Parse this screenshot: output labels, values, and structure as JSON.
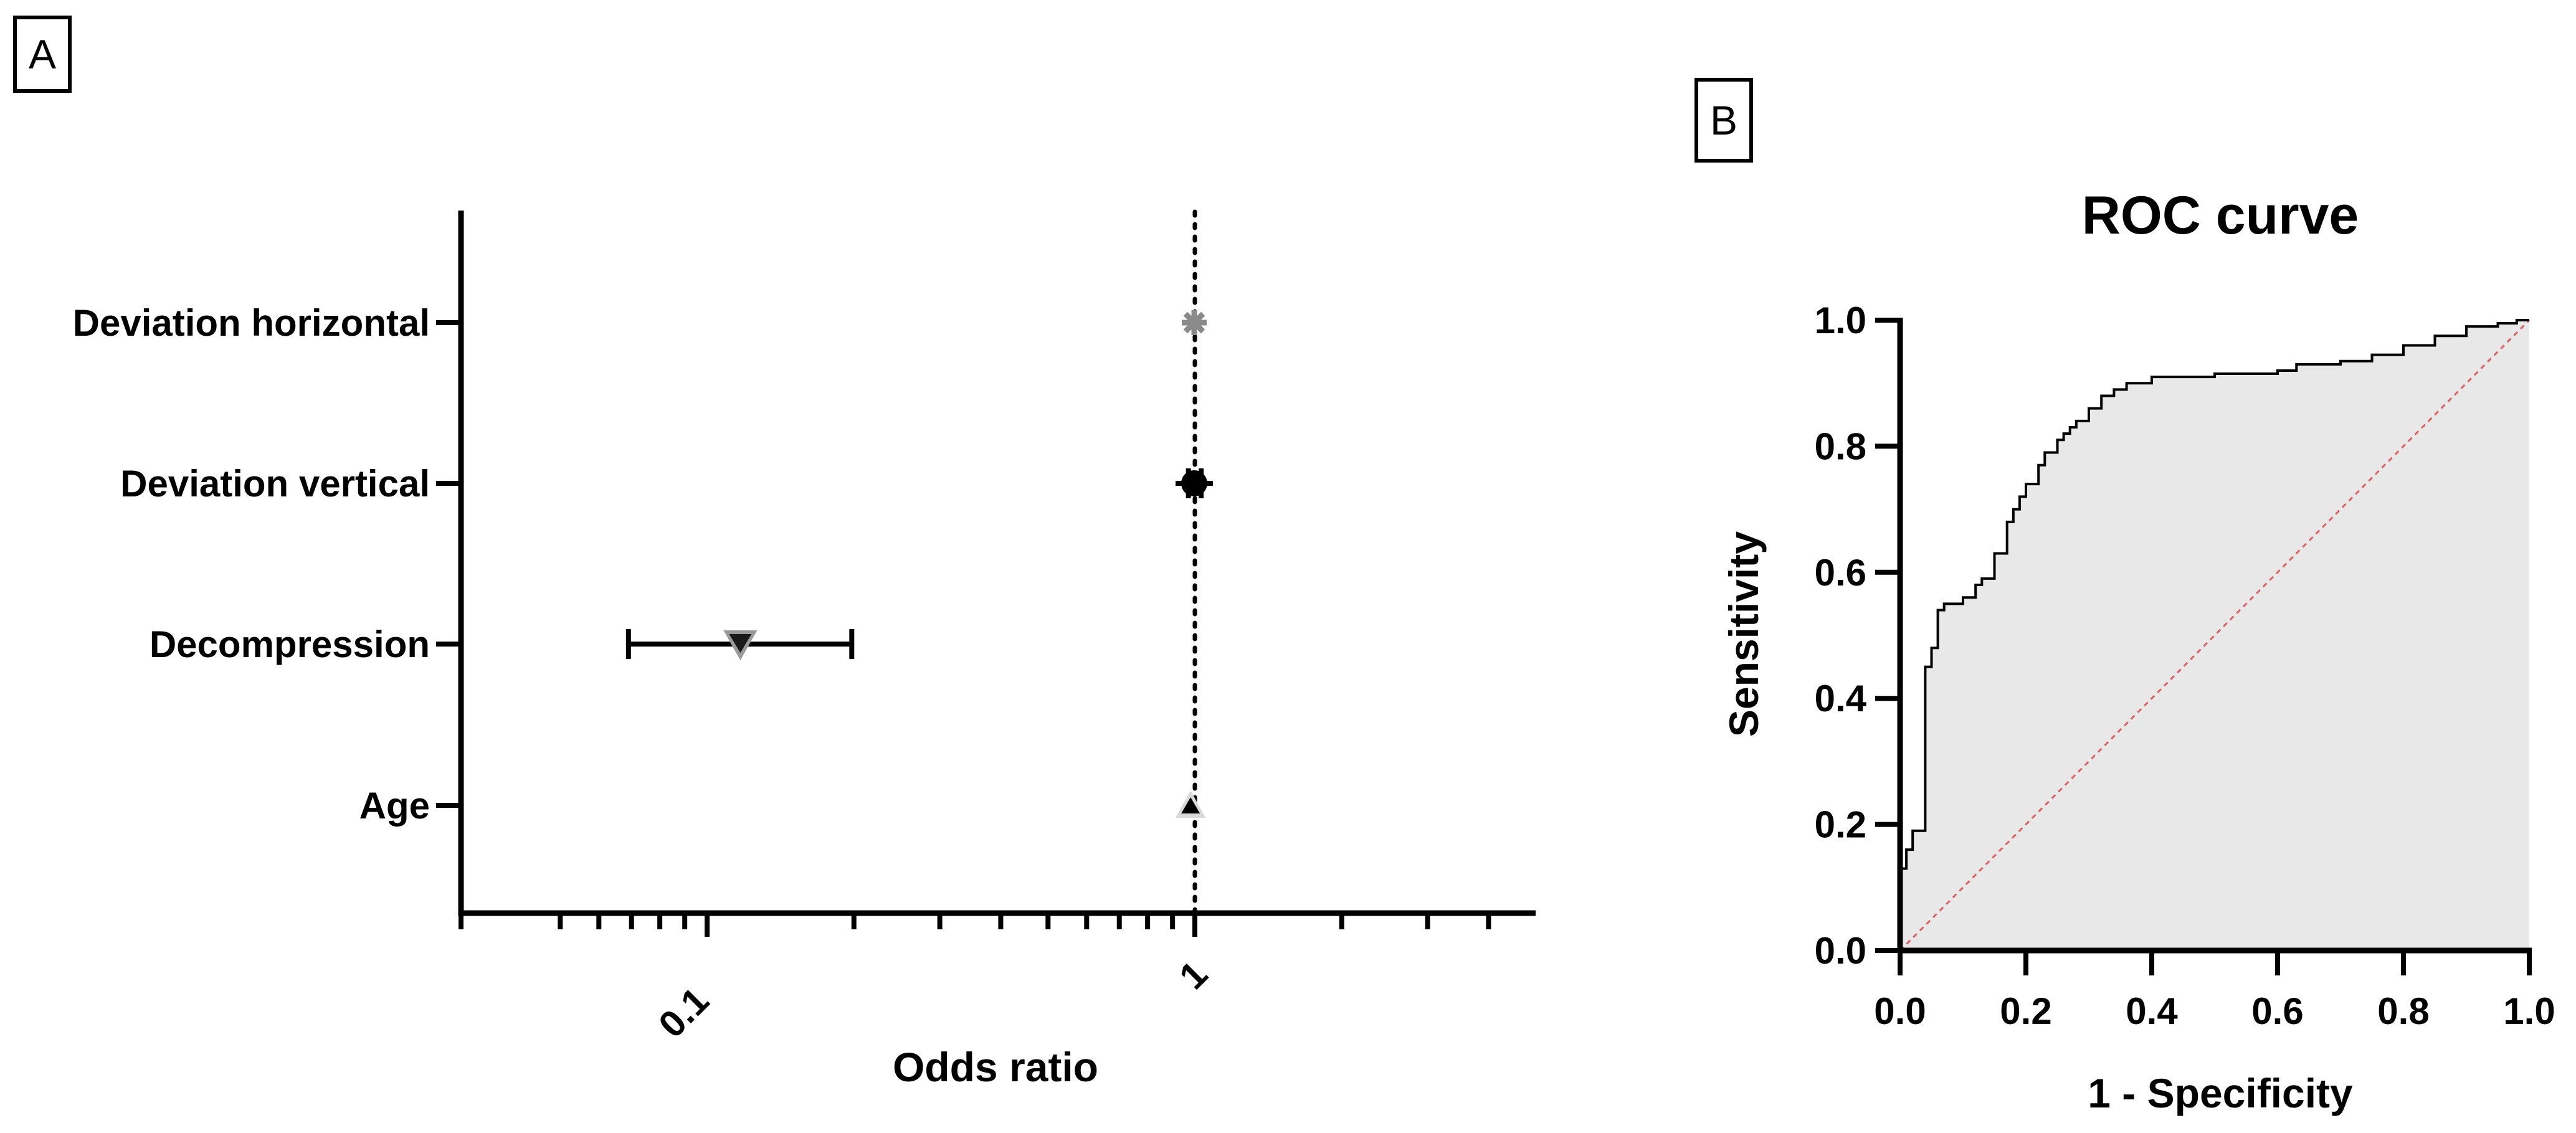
{
  "panels": {
    "a_label": "A",
    "b_label": "B"
  },
  "chart_data": [
    {
      "type": "scatter",
      "subtype": "forest-plot",
      "panel": "A",
      "title": "",
      "xlabel": "Odds ratio",
      "ylabel": "",
      "x_scale": "log",
      "xlim": [
        0.04,
        5
      ],
      "x_ticks": [
        0.1,
        1
      ],
      "x_tick_labels": [
        "0.1",
        "1"
      ],
      "reference_line": 1,
      "categories": [
        "Deviation horizontal",
        "Deviation vertical",
        "Decompression",
        "Age"
      ],
      "points": [
        {
          "category": "Deviation horizontal",
          "or": 0.997,
          "ci_low": 0.99,
          "ci_high": 1.005,
          "marker": "star",
          "color": "#8a8a8a"
        },
        {
          "category": "Deviation vertical",
          "or": 0.997,
          "ci_low": 0.97,
          "ci_high": 1.03,
          "marker": "circle",
          "color": "#000000"
        },
        {
          "category": "Decompression",
          "or": 0.117,
          "ci_low": 0.069,
          "ci_high": 0.198,
          "marker": "triangle-down",
          "color": "#1a1a1a"
        },
        {
          "category": "Age",
          "or": 0.98,
          "ci_low": 0.97,
          "ci_high": 0.99,
          "marker": "triangle-up",
          "color": "#000000"
        }
      ]
    },
    {
      "type": "line",
      "subtype": "roc-curve",
      "panel": "B",
      "title": "ROC curve",
      "xlabel": "1 - Specificity",
      "ylabel": "Sensitivity",
      "xlim": [
        0,
        1
      ],
      "ylim": [
        0,
        1
      ],
      "x_ticks": [
        "0.0",
        "0.2",
        "0.4",
        "0.6",
        "0.8",
        "1.0"
      ],
      "y_ticks": [
        "0.0",
        "0.2",
        "0.4",
        "0.6",
        "0.8",
        "1.0"
      ],
      "reference_diagonal_color": "#e06060",
      "area_fill_color": "#e8e8e8",
      "x": [
        0,
        0,
        0.01,
        0.02,
        0.02,
        0.03,
        0.04,
        0.04,
        0.05,
        0.06,
        0.07,
        0.08,
        0.1,
        0.12,
        0.13,
        0.15,
        0.17,
        0.18,
        0.19,
        0.2,
        0.22,
        0.23,
        0.25,
        0.26,
        0.27,
        0.28,
        0.3,
        0.32,
        0.34,
        0.36,
        0.4,
        0.45,
        0.5,
        0.55,
        0.6,
        0.63,
        0.7,
        0.75,
        0.8,
        0.85,
        0.9,
        0.95,
        0.98,
        1
      ],
      "y": [
        0,
        0.13,
        0.16,
        0.18,
        0.19,
        0.19,
        0.44,
        0.45,
        0.48,
        0.54,
        0.55,
        0.55,
        0.56,
        0.58,
        0.59,
        0.63,
        0.68,
        0.7,
        0.72,
        0.74,
        0.77,
        0.79,
        0.81,
        0.82,
        0.83,
        0.84,
        0.86,
        0.88,
        0.89,
        0.9,
        0.91,
        0.91,
        0.915,
        0.915,
        0.92,
        0.93,
        0.935,
        0.945,
        0.96,
        0.975,
        0.99,
        0.995,
        1.0,
        1.0
      ]
    }
  ]
}
